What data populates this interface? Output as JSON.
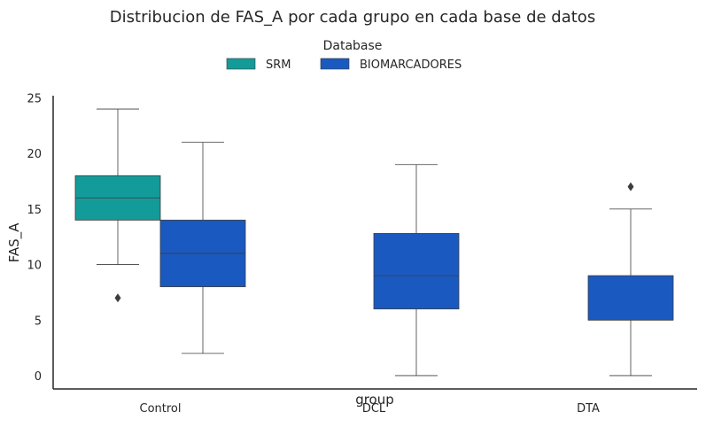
{
  "chart_data": {
    "type": "box",
    "title": "Distribucion de FAS_A por cada grupo en cada base de datos",
    "xlabel": "group",
    "ylabel": "FAS_A",
    "categories": [
      "Control",
      "DCL",
      "DTA"
    ],
    "ylim": [
      -1.2,
      25.2
    ],
    "yticks": [
      0,
      5,
      10,
      15,
      20,
      25
    ],
    "grid": false,
    "legend": {
      "title": "Database",
      "placement": "top-center",
      "entries": [
        "SRM",
        "BIOMARCADORES"
      ]
    },
    "series": [
      {
        "name": "SRM",
        "color": "#139b99",
        "boxes": [
          {
            "category": "Control",
            "whislo": 10,
            "q1": 14,
            "median": 16,
            "q3": 18,
            "whishi": 24,
            "fliers": [
              7
            ]
          },
          null,
          null
        ]
      },
      {
        "name": "BIOMARCADORES",
        "color": "#1a5ac0",
        "boxes": [
          {
            "category": "Control",
            "whislo": 2,
            "q1": 8,
            "median": 11,
            "q3": 14,
            "whishi": 21,
            "fliers": []
          },
          {
            "category": "DCL",
            "whislo": 0,
            "q1": 6,
            "median": 9,
            "q3": 12.8,
            "whishi": 19,
            "fliers": []
          },
          {
            "category": "DTA",
            "whislo": 0,
            "q1": 5,
            "median": 5,
            "q3": 9,
            "whishi": 15,
            "fliers": [
              17
            ]
          }
        ]
      }
    ]
  }
}
